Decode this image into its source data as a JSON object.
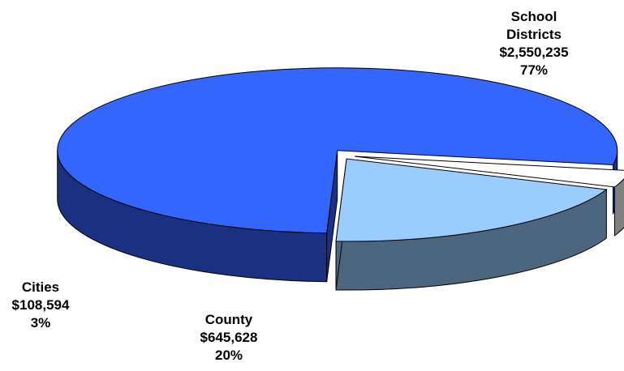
{
  "chart_data": {
    "type": "pie",
    "style": "3d-exploded",
    "slices": [
      {
        "name": "School Districts",
        "value": 2550235,
        "value_label": "$2,550,235",
        "percent_label": "77%",
        "color": "#3366FF",
        "side_color": "#1A3080"
      },
      {
        "name": "County",
        "value": 645628,
        "value_label": "$645,628",
        "percent_label": "20%",
        "color": "#99CCFF",
        "side_color": "#4D6680"
      },
      {
        "name": "Cities",
        "value": 108594,
        "value_label": "$108,594",
        "percent_label": "3%",
        "color": "#FFFFFF",
        "side_color": "#808080"
      }
    ],
    "legend": "none"
  },
  "labels": {
    "school": {
      "line1": "School",
      "line2": "Districts",
      "line3": "$2,550,235",
      "line4": "77%"
    },
    "county": {
      "line1": "County",
      "line2": "$645,628",
      "line3": "20%"
    },
    "cities": {
      "line1": "Cities",
      "line2": "$108,594",
      "line3": "3%"
    }
  }
}
